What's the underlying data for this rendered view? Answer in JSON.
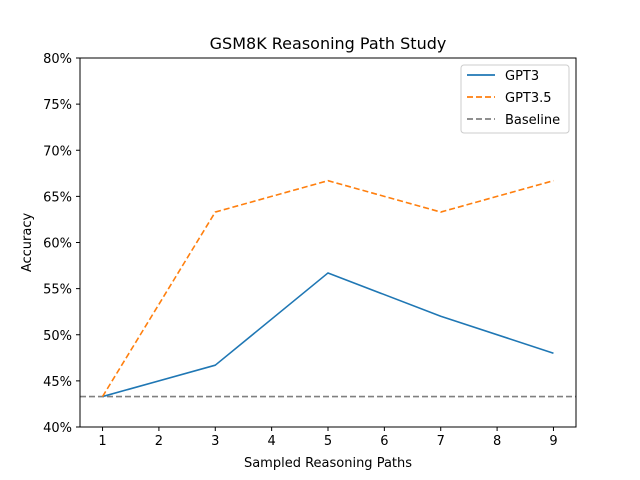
{
  "chart_data": {
    "type": "line",
    "title": "GSM8K Reasoning Path Study",
    "xlabel": "Sampled Reasoning Paths",
    "ylabel": "Accuracy",
    "x": [
      1,
      3,
      5,
      7,
      9
    ],
    "xticks": [
      "1",
      "2",
      "3",
      "4",
      "5",
      "6",
      "7",
      "8",
      "9"
    ],
    "xlim": [
      0.6,
      9.4
    ],
    "ylim": [
      40,
      80
    ],
    "yticks": [
      "40%",
      "45%",
      "50%",
      "55%",
      "60%",
      "65%",
      "70%",
      "75%",
      "80%"
    ],
    "ytick_values": [
      40,
      45,
      50,
      55,
      60,
      65,
      70,
      75,
      80
    ],
    "grid": false,
    "legend_position": "top-right",
    "series": [
      {
        "name": "GPT3",
        "values": [
          43.3,
          46.7,
          56.7,
          52.0,
          48.0
        ],
        "color": "#1f77b4",
        "style": "solid"
      },
      {
        "name": "GPT3.5",
        "values": [
          43.3,
          63.3,
          66.7,
          63.3,
          66.7
        ],
        "color": "#ff7f0e",
        "style": "dashed"
      }
    ],
    "baseline": {
      "name": "Baseline",
      "value": 43.3,
      "color": "#808080",
      "style": "dashed"
    }
  }
}
